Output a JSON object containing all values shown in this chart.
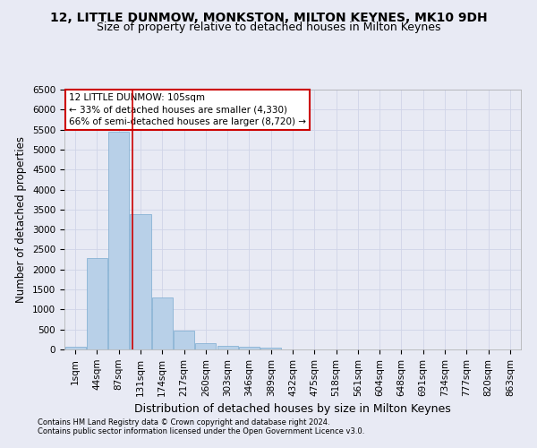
{
  "title": "12, LITTLE DUNMOW, MONKSTON, MILTON KEYNES, MK10 9DH",
  "subtitle": "Size of property relative to detached houses in Milton Keynes",
  "xlabel": "Distribution of detached houses by size in Milton Keynes",
  "ylabel": "Number of detached properties",
  "footer_line1": "Contains HM Land Registry data © Crown copyright and database right 2024.",
  "footer_line2": "Contains public sector information licensed under the Open Government Licence v3.0.",
  "bar_labels": [
    "1sqm",
    "44sqm",
    "87sqm",
    "131sqm",
    "174sqm",
    "217sqm",
    "260sqm",
    "303sqm",
    "346sqm",
    "389sqm",
    "432sqm",
    "475sqm",
    "518sqm",
    "561sqm",
    "604sqm",
    "648sqm",
    "691sqm",
    "734sqm",
    "777sqm",
    "820sqm",
    "863sqm"
  ],
  "bar_values": [
    75,
    2280,
    5450,
    3390,
    1310,
    480,
    165,
    90,
    65,
    40,
    0,
    0,
    0,
    0,
    0,
    0,
    0,
    0,
    0,
    0,
    0
  ],
  "bar_color": "#b8d0e8",
  "bar_edge_color": "#7aaad0",
  "grid_color": "#d0d4e8",
  "background_color": "#e8eaf4",
  "annotation_text": "12 LITTLE DUNMOW: 105sqm\n← 33% of detached houses are smaller (4,330)\n66% of semi-detached houses are larger (8,720) →",
  "annotation_box_color": "#ffffff",
  "annotation_border_color": "#cc0000",
  "red_line_x": 2.62,
  "ylim": [
    0,
    6500
  ],
  "title_fontsize": 10,
  "subtitle_fontsize": 9,
  "xlabel_fontsize": 9,
  "ylabel_fontsize": 8.5,
  "tick_fontsize": 7.5,
  "annotation_fontsize": 7.5,
  "footer_fontsize": 6
}
